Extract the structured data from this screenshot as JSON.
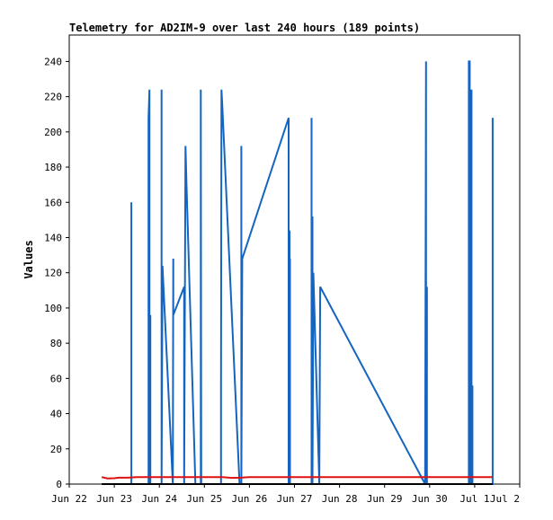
{
  "chart_data": {
    "type": "line",
    "title": "Telemetry for AD2IM-9 over last 240 hours (189 points)",
    "xlabel": "",
    "ylabel": "Values",
    "ylim": [
      0,
      255
    ],
    "y_ticks": [
      0,
      20,
      40,
      60,
      80,
      100,
      120,
      140,
      160,
      180,
      200,
      220,
      240
    ],
    "x_range_days": [
      0,
      10
    ],
    "x_ticks": [
      {
        "label": "Jun 22",
        "day": 0
      },
      {
        "label": "Jun 23",
        "day": 1
      },
      {
        "label": "Jun 24",
        "day": 2
      },
      {
        "label": "Jun 25",
        "day": 3
      },
      {
        "label": "Jun 26",
        "day": 4
      },
      {
        "label": "Jun 27",
        "day": 5
      },
      {
        "label": "Jun 28",
        "day": 6
      },
      {
        "label": "Jun 29",
        "day": 7
      },
      {
        "label": "Jun 30",
        "day": 8
      },
      {
        "label": "Jul 1",
        "day": 9
      },
      {
        "label": "Jul 2",
        "day": 10
      }
    ],
    "grid": false,
    "legend": "none",
    "series": [
      {
        "color": "#1565c0",
        "points": [
          [
            1.38,
            0
          ],
          [
            1.38,
            160
          ],
          [
            1.38,
            0
          ],
          [
            1.76,
            0
          ],
          [
            1.76,
            208
          ],
          [
            1.78,
            224
          ],
          [
            1.78,
            0
          ],
          [
            1.8,
            96
          ],
          [
            1.8,
            0
          ],
          [
            2.05,
            0
          ],
          [
            2.05,
            224
          ],
          [
            2.05,
            0
          ],
          [
            2.07,
            124
          ],
          [
            2.3,
            0
          ],
          [
            2.31,
            128
          ],
          [
            2.31,
            96
          ],
          [
            2.55,
            112
          ],
          [
            2.55,
            0
          ],
          [
            2.58,
            192
          ],
          [
            2.6,
            172
          ],
          [
            2.8,
            0
          ],
          [
            2.92,
            0
          ],
          [
            2.92,
            224
          ],
          [
            2.93,
            0
          ],
          [
            3.37,
            0
          ],
          [
            3.37,
            56
          ],
          [
            3.38,
            224
          ],
          [
            3.4,
            214
          ],
          [
            3.78,
            0
          ],
          [
            3.82,
            0
          ],
          [
            3.82,
            192
          ],
          [
            3.82,
            0
          ],
          [
            3.84,
            128
          ],
          [
            4.87,
            208
          ],
          [
            4.87,
            0
          ],
          [
            4.89,
            144
          ],
          [
            4.89,
            0
          ],
          [
            4.9,
            128
          ],
          [
            4.9,
            0
          ],
          [
            5.38,
            0
          ],
          [
            5.38,
            208
          ],
          [
            5.38,
            0
          ],
          [
            5.4,
            152
          ],
          [
            5.4,
            0
          ],
          [
            5.42,
            120
          ],
          [
            5.55,
            0
          ],
          [
            5.57,
            112
          ],
          [
            7.9,
            0
          ],
          [
            7.92,
            240
          ],
          [
            7.92,
            0
          ],
          [
            7.94,
            112
          ],
          [
            7.94,
            0
          ],
          [
            8.87,
            0
          ],
          [
            8.87,
            240
          ],
          [
            8.89,
            240
          ],
          [
            8.89,
            0
          ],
          [
            8.91,
            192
          ],
          [
            8.91,
            0
          ],
          [
            8.93,
            224
          ],
          [
            8.93,
            0
          ],
          [
            8.95,
            56
          ],
          [
            8.95,
            0
          ],
          [
            9.4,
            0
          ],
          [
            9.4,
            208
          ],
          [
            9.4,
            0
          ]
        ]
      },
      {
        "color": "#dd1111",
        "points": [
          [
            0.72,
            4.0
          ],
          [
            0.85,
            3.2
          ],
          [
            1.0,
            3.3
          ],
          [
            1.1,
            3.6
          ],
          [
            1.3,
            3.6
          ],
          [
            1.5,
            4.0
          ],
          [
            2.0,
            4.0
          ],
          [
            2.7,
            4.0
          ],
          [
            3.0,
            4.0
          ],
          [
            3.4,
            4.0
          ],
          [
            3.6,
            3.5
          ],
          [
            3.8,
            3.6
          ],
          [
            4.0,
            4.0
          ],
          [
            5.0,
            4.0
          ],
          [
            6.0,
            4.0
          ],
          [
            7.0,
            4.0
          ],
          [
            8.0,
            4.0
          ],
          [
            9.0,
            4.0
          ],
          [
            9.4,
            4.0
          ]
        ]
      },
      {
        "color": "#000000",
        "points": [
          [
            0.72,
            0
          ],
          [
            9.4,
            0
          ]
        ]
      }
    ]
  }
}
